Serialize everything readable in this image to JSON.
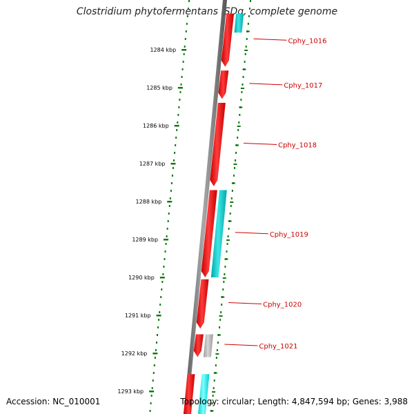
{
  "title": "Clostridium phytofermentans ISDg, complete genome",
  "accession": "Accession: NC_010001",
  "topology": "Topology: circular; Length: 4,847,594 bp; Genes: 3,988",
  "ticks": [
    {
      "label": "1284 kbp",
      "kbp": 1284
    },
    {
      "label": "1285 kbp",
      "kbp": 1285
    },
    {
      "label": "1286 kbp",
      "kbp": 1286
    },
    {
      "label": "1287 kbp",
      "kbp": 1287
    },
    {
      "label": "1288 kbp",
      "kbp": 1288
    },
    {
      "label": "1289 kbp",
      "kbp": 1289
    },
    {
      "label": "1290 kbp",
      "kbp": 1290
    },
    {
      "label": "1291 kbp",
      "kbp": 1291
    },
    {
      "label": "1292 kbp",
      "kbp": 1292
    },
    {
      "label": "1293 kbp",
      "kbp": 1293
    }
  ],
  "genes": [
    {
      "name": "Cphy_1016",
      "start_kbp": 1283.05,
      "end_kbp": 1284.45,
      "color": "#ee0000"
    },
    {
      "name": "Cphy_1017",
      "start_kbp": 1284.55,
      "end_kbp": 1285.3,
      "color": "#ee0000"
    },
    {
      "name": "Cphy_1018",
      "start_kbp": 1285.4,
      "end_kbp": 1287.6,
      "color": "#ee0000"
    },
    {
      "name": "Cphy_1019",
      "start_kbp": 1287.7,
      "end_kbp": 1290.0,
      "color": "#ee0000"
    },
    {
      "name": "Cphy_1020",
      "start_kbp": 1290.05,
      "end_kbp": 1291.35,
      "color": "#ee0000"
    },
    {
      "name": "Cphy_1021",
      "start_kbp": 1291.5,
      "end_kbp": 1292.1,
      "color": "#ee0000"
    }
  ],
  "gene_partners": [
    {
      "start_kbp": 1283.05,
      "end_kbp": 1283.55,
      "color": "#00c8c8"
    },
    {
      "start_kbp": 1287.7,
      "end_kbp": 1290.0,
      "color": "#00c8c8"
    },
    {
      "start_kbp": 1291.5,
      "end_kbp": 1292.1,
      "color": "#b4b4b4"
    },
    {
      "start_kbp": 1292.55,
      "end_kbp": 1293.6,
      "color": "#00e6e6"
    }
  ],
  "bottom_gene": {
    "start_kbp": 1292.55,
    "end_kbp": 1293.6,
    "color": "#ee0000"
  },
  "colors": {
    "backbone": "#7a7a7a",
    "tick_dots": "#0a7a0a",
    "label": "#cc0000"
  }
}
